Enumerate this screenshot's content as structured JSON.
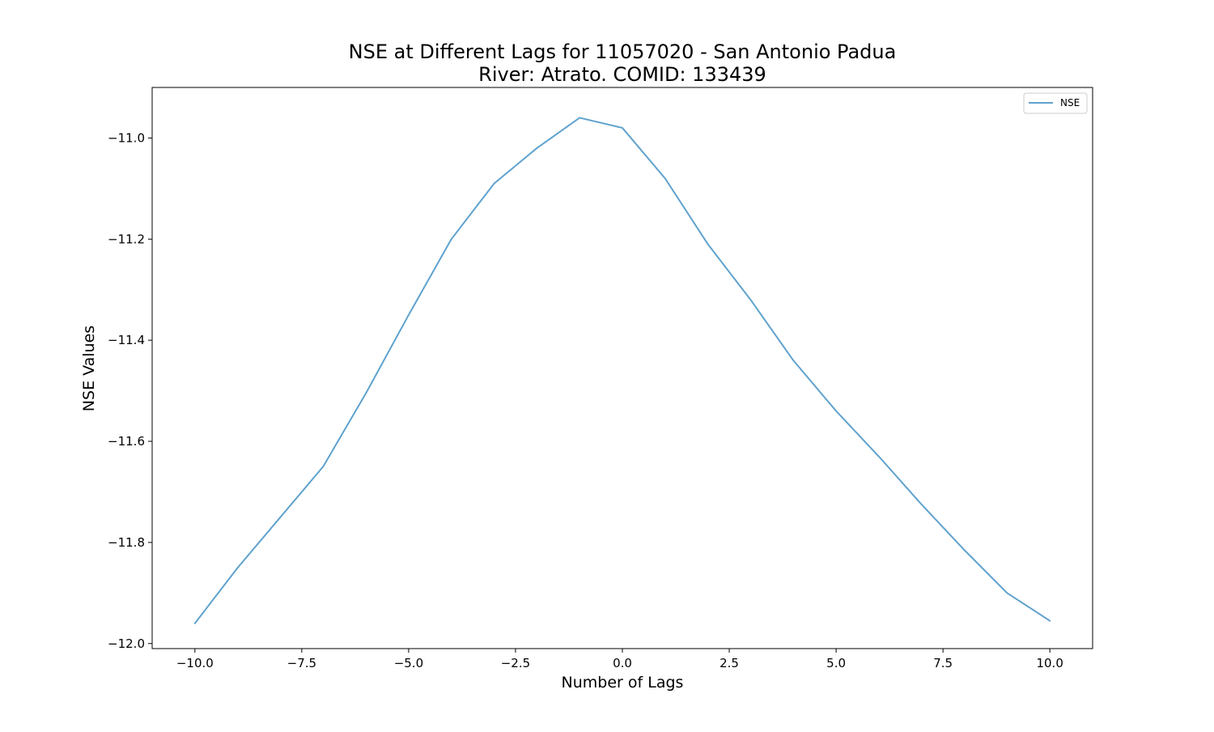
{
  "chart_data": {
    "type": "line",
    "title_lines": [
      "NSE at Different Lags for 11057020 - San Antonio Padua",
      "River: Atrato. COMID: 133439"
    ],
    "xlabel": "Number of Lags",
    "ylabel": "NSE Values",
    "xlim": [
      -11.0,
      11.0
    ],
    "ylim": [
      -12.01,
      -10.9
    ],
    "x_ticks": [
      -10.0,
      -7.5,
      -5.0,
      -2.5,
      0.0,
      2.5,
      5.0,
      7.5,
      10.0
    ],
    "x_tick_labels": [
      "−10.0",
      "−7.5",
      "−5.0",
      "−2.5",
      "0.0",
      "2.5",
      "5.0",
      "7.5",
      "10.0"
    ],
    "y_ticks": [
      -11.0,
      -11.2,
      -11.4,
      -11.6,
      -11.8,
      -12.0
    ],
    "y_tick_labels": [
      "−11.0",
      "−11.2",
      "−11.4",
      "−11.6",
      "−11.8",
      "−12.0"
    ],
    "grid": false,
    "legend_position": "top-right",
    "series": [
      {
        "name": "NSE",
        "color": "#5fa2ce",
        "x": [
          -10,
          -9,
          -8,
          -7,
          -6,
          -5,
          -4,
          -3,
          -2,
          -1,
          0,
          1,
          2,
          3,
          4,
          5,
          6,
          7,
          8,
          9,
          10
        ],
        "y": [
          -11.96,
          -11.85,
          -11.75,
          -11.65,
          -11.505,
          -11.35,
          -11.2,
          -11.09,
          -11.02,
          -10.96,
          -10.98,
          -11.08,
          -11.21,
          -11.32,
          -11.44,
          -11.54,
          -11.63,
          -11.725,
          -11.815,
          -11.9,
          -11.955
        ]
      }
    ]
  }
}
